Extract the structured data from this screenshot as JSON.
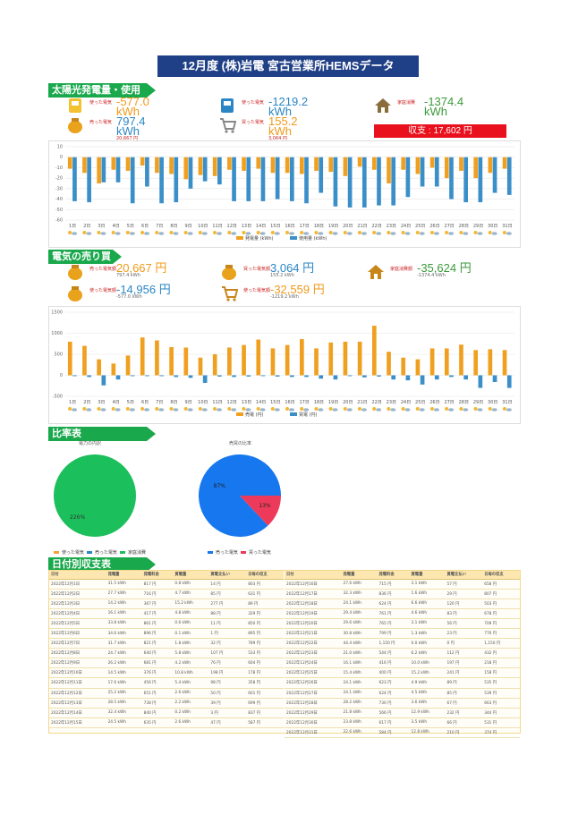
{
  "title": "12月度 (株)岩電 宮古営業所HEMSデータ",
  "sections": {
    "solar": "太陽光発電量・使用量",
    "trade": "電気の売り買い",
    "ratio": "比率表",
    "daily": "日付別収支表"
  },
  "kpi_energy": {
    "used": {
      "label": "使った電気",
      "value": "-577.0",
      "unit": "kWh"
    },
    "used_total": {
      "label": "使った電気",
      "value": "-1219.2",
      "unit": "kWh"
    },
    "home": {
      "label": "家庭消費",
      "value": "-1374.4",
      "unit": "kWh"
    },
    "sold": {
      "label": "売った電気",
      "value": "797.4",
      "unit": "kWh",
      "sub": "20,667 円"
    },
    "bought": {
      "label": "買った電気",
      "value": "155.2",
      "unit": "kWh",
      "sub": "3,064 円"
    },
    "balance": "収支 : 17,602 円"
  },
  "kpi_money": {
    "sold": {
      "label": "売った電気額",
      "value": "20,667 円",
      "sub": "797.4 kWh"
    },
    "bought": {
      "label": "買った電気額",
      "value": "3,064 円",
      "sub": "155.2 kWh"
    },
    "home": {
      "label": "家庭消費額",
      "value": "-35,624 円",
      "sub": "-1374.4 kWh"
    },
    "used": {
      "label": "使った電気額",
      "value": "-14,956 円",
      "sub": "-577.0 kWh"
    },
    "used_total": {
      "label": "使った電気額",
      "value": "-32,559 円",
      "sub": "-1219.2 kWh"
    }
  },
  "chart_data": [
    {
      "type": "bar",
      "categories": [
        "1日",
        "2日",
        "3日",
        "4日",
        "5日",
        "6日",
        "7日",
        "8日",
        "9日",
        "10日",
        "11日",
        "12日",
        "13日",
        "14日",
        "15日",
        "16日",
        "17日",
        "18日",
        "19日",
        "20日",
        "21日",
        "22日",
        "23日",
        "24日",
        "25日",
        "26日",
        "27日",
        "28日",
        "29日",
        "30日",
        "31日"
      ],
      "series": [
        {
          "name": "発電量 (kWh)",
          "values": [
            -11,
            -15,
            -25,
            -12,
            -13,
            -8,
            -15,
            -16,
            -21,
            -17,
            -18,
            -12,
            -13,
            -11,
            -15,
            -15,
            -16,
            -13,
            -14,
            -18,
            -9,
            -12,
            -25,
            -12,
            -16,
            -10,
            -20,
            -13,
            -20,
            -15,
            -11
          ]
        },
        {
          "name": "使用量 (kWh)",
          "values": [
            -42,
            -43,
            -24,
            -24,
            -44,
            -28,
            -44,
            -43,
            -30,
            -23,
            -26,
            -42,
            -42,
            -42,
            -40,
            -42,
            -44,
            -34,
            -47,
            -48,
            -48,
            -46,
            -46,
            -38,
            -28,
            -28,
            -40,
            -43,
            -43,
            -34,
            -36
          ]
        }
      ],
      "ylim": [
        -60,
        10
      ],
      "yticks": [
        10,
        0,
        -10,
        -20,
        -30,
        -40,
        -50,
        -60
      ]
    },
    {
      "type": "bar",
      "categories": [
        "1日",
        "2日",
        "3日",
        "4日",
        "5日",
        "6日",
        "7日",
        "8日",
        "9日",
        "10日",
        "11日",
        "12日",
        "13日",
        "14日",
        "15日",
        "16日",
        "17日",
        "18日",
        "19日",
        "20日",
        "21日",
        "22日",
        "23日",
        "24日",
        "25日",
        "26日",
        "27日",
        "28日",
        "29日",
        "30日",
        "31日"
      ],
      "series": [
        {
          "name": "売電 (円)",
          "values": [
            800,
            700,
            380,
            280,
            470,
            900,
            830,
            670,
            660,
            420,
            500,
            660,
            720,
            850,
            640,
            720,
            860,
            640,
            780,
            800,
            800,
            1180,
            560,
            420,
            380,
            640,
            640,
            730,
            600,
            620,
            600
          ]
        },
        {
          "name": "買電 (円)",
          "values": [
            -20,
            -40,
            -240,
            -100,
            -20,
            -20,
            -20,
            -40,
            -60,
            -180,
            -30,
            -40,
            -30,
            -20,
            -30,
            -40,
            -40,
            -80,
            -100,
            -20,
            -50,
            -30,
            -100,
            -120,
            -220,
            -100,
            -40,
            -100,
            -300,
            -160,
            -300
          ]
        }
      ],
      "ylim": [
        -500,
        1500
      ],
      "yticks": [
        1500,
        1000,
        500,
        0,
        -500
      ]
    },
    {
      "type": "pie",
      "title": "電力の内訳",
      "slices": [
        {
          "name": "売った電気",
          "value": 226,
          "label": "226%"
        }
      ],
      "legend": [
        "使った電気",
        "売った電気",
        "家庭消費"
      ]
    },
    {
      "type": "pie",
      "title": "売買の比率",
      "slices": [
        {
          "name": "売った電気",
          "value": 87,
          "label": "87%"
        },
        {
          "name": "買った電気",
          "value": 13,
          "label": "13%"
        }
      ],
      "legend": [
        "売った電気",
        "買った電気"
      ]
    }
  ],
  "table": {
    "headers": [
      "日付",
      "発電量",
      "発電料金",
      "買電量",
      "買電支払い",
      "日毎の収支"
    ],
    "left": [
      [
        "2022年12月1日",
        "31.5 kWh",
        "817 円",
        "0.8 kWh",
        "14 円",
        "803 円"
      ],
      [
        "2022年12月2日",
        "27.7 kWh",
        "716 円",
        "4.7 kWh",
        "85 円",
        "631 円"
      ],
      [
        "2022年12月3日",
        "14.2 kWh",
        "367 円",
        "15.2 kWh",
        "277 円",
        "89 円"
      ],
      [
        "2022年12月4日",
        "16.1 kWh",
        "417 円",
        "4.8 kWh",
        "88 円",
        "329 円"
      ],
      [
        "2022年12月5日",
        "33.8 kWh",
        "861 円",
        "0.6 kWh",
        "11 円",
        "850 円"
      ],
      [
        "2022年12月6日",
        "34.6 kWh",
        "896 円",
        "0.1 kWh",
        "1 円",
        "895 円"
      ],
      [
        "2022年12月7日",
        "31.7 kWh",
        "821 円",
        "1.8 kWh",
        "32 円",
        "789 円"
      ],
      [
        "2022年12月8日",
        "24.7 kWh",
        "640 円",
        "5.8 kWh",
        "107 円",
        "533 円"
      ],
      [
        "2022年12月9日",
        "26.2 kWh",
        "681 円",
        "4.2 kWh",
        "76 円",
        "604 円"
      ],
      [
        "2022年12月10日",
        "14.5 kWh",
        "376 円",
        "10.8 kWh",
        "198 円",
        "178 円"
      ],
      [
        "2022年12月11日",
        "17.6 kWh",
        "456 円",
        "5.4 kWh",
        "98 円",
        "358 円"
      ],
      [
        "2022年12月12日",
        "25.2 kWh",
        "651 円",
        "2.6 kWh",
        "50 円",
        "601 円"
      ],
      [
        "2022年12月13日",
        "28.5 kWh",
        "738 円",
        "2.2 kWh",
        "39 円",
        "699 円"
      ],
      [
        "2022年12月14日",
        "32.4 kWh",
        "840 円",
        "0.2 kWh",
        "3 円",
        "837 円"
      ],
      [
        "2022年12月15日",
        "24.5 kWh",
        "635 円",
        "2.6 kWh",
        "47 円",
        "587 円"
      ]
    ],
    "right": [
      [
        "2022年12月16日",
        "27.6 kWh",
        "715 円",
        "3.1 kWh",
        "57 円",
        "658 円"
      ],
      [
        "2022年12月17日",
        "32.3 kWh",
        "836 円",
        "1.6 kWh",
        "29 円",
        "807 円"
      ],
      [
        "2022年12月18日",
        "24.1 kWh",
        "624 円",
        "6.6 kWh",
        "120 円",
        "503 円"
      ],
      [
        "2022年12月19日",
        "29.4 kWh",
        "761 円",
        "4.6 kWh",
        "83 円",
        "678 円"
      ],
      [
        "2022年12月20日",
        "29.6 kWh",
        "765 円",
        "3.1 kWh",
        "56 円",
        "709 円"
      ],
      [
        "2022年12月21日",
        "30.8 kWh",
        "799 円",
        "1.3 kWh",
        "23 円",
        "776 円"
      ],
      [
        "2022年12月22日",
        "44.4 kWh",
        "1,150 円",
        "0.0 kWh",
        "0 円",
        "1,150 円"
      ],
      [
        "2022年12月23日",
        "21.0 kWh",
        "544 円",
        "6.2 kWh",
        "112 円",
        "432 円"
      ],
      [
        "2022年12月24日",
        "16.1 kWh",
        "416 円",
        "10.0 kWh",
        "197 円",
        "218 円"
      ],
      [
        "2022年12月25日",
        "15.4 kWh",
        "400 円",
        "15.2 kWh",
        "241 円",
        "158 円"
      ],
      [
        "2022年12月26日",
        "24.1 kWh",
        "623 円",
        "4.9 kWh",
        "89 円",
        "535 円"
      ],
      [
        "2022年12月27日",
        "24.1 kWh",
        "624 円",
        "4.5 kWh",
        "85 円",
        "539 円"
      ],
      [
        "2022年12月28日",
        "28.2 kWh",
        "730 円",
        "3.6 kWh",
        "67 円",
        "663 円"
      ],
      [
        "2022年12月29日",
        "21.8 kWh",
        "566 円",
        "12.9 kWh",
        "232 円",
        "344 円"
      ],
      [
        "2022年12月30日",
        "23.8 kWh",
        "617 円",
        "3.5 kWh",
        "66 円",
        "531 円"
      ],
      [
        "2022年12月31日",
        "22.6 kWh",
        "584 円",
        "12.8 kWh",
        "210 円",
        "374 円"
      ]
    ]
  }
}
